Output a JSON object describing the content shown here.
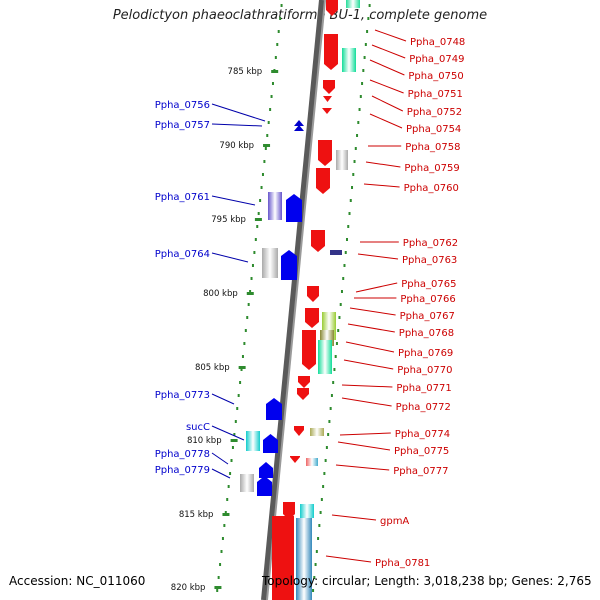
{
  "title": "Pelodictyon phaeoclathratiforme BU-1, complete genome",
  "accession": "Accession: NC_011060",
  "topology": "Topology: circular; Length: 3,018,238 bp; Genes: 2,765",
  "colors": {
    "forward": "#0000ee",
    "reverse": "#ee0000",
    "axis": "#888888",
    "kbp_dash": "#2e8b2e"
  },
  "chart_data": {
    "type": "genome-map",
    "scale_labels": [
      "785 kbp",
      "790 kbp",
      "795 kbp",
      "800 kbp",
      "805 kbp",
      "810 kbp",
      "815 kbp",
      "820 kbp"
    ],
    "scale_positions_kbp": [
      785,
      790,
      795,
      800,
      805,
      810,
      815,
      820
    ],
    "left_genes": [
      "Ppha_0756",
      "Ppha_0757",
      "Ppha_0761",
      "Ppha_0764",
      "Ppha_0773",
      "sucC",
      "Ppha_0778",
      "Ppha_0779"
    ],
    "right_genes": [
      "Ppha_0748",
      "Ppha_0749",
      "Ppha_0750",
      "Ppha_0751",
      "Ppha_0752",
      "Ppha_0754",
      "Ppha_0758",
      "Ppha_0759",
      "Ppha_0760",
      "Ppha_0762",
      "Ppha_0763",
      "Ppha_0765",
      "Ppha_0766",
      "Ppha_0767",
      "Ppha_0768",
      "Ppha_0769",
      "Ppha_0770",
      "Ppha_0771",
      "Ppha_0772",
      "Ppha_0774",
      "Ppha_0775",
      "Ppha_0777",
      "gpmA",
      "Ppha_0781"
    ]
  }
}
